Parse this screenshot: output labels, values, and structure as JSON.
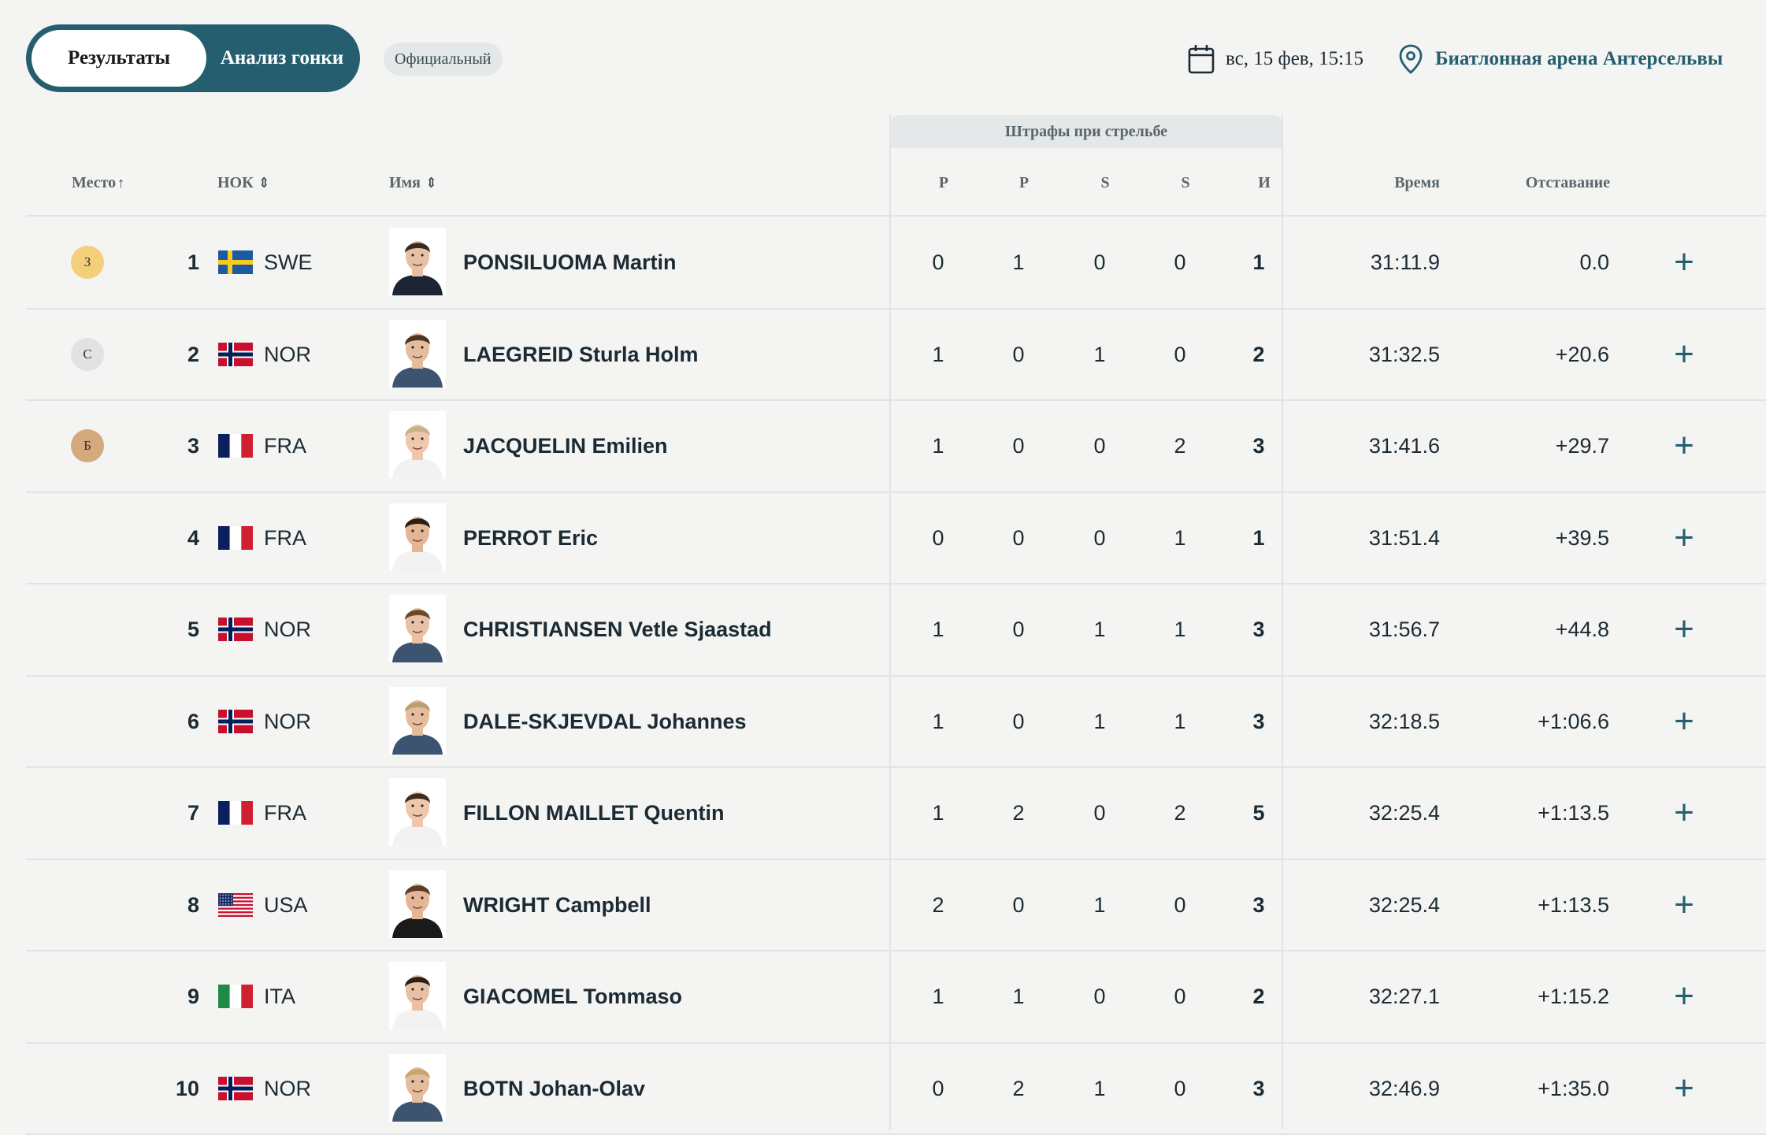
{
  "tabs": {
    "results": "Результаты",
    "analysis": "Анализ гонки"
  },
  "status_badge": "Официальный",
  "date_label": "вс, 15 фев, 15:15",
  "venue": "Биатлонная арена Антерсельвы",
  "table": {
    "shooting_group": "Штрафы при стрельбе",
    "headers": {
      "rank": "Место",
      "noc": "НОК",
      "name": "Имя",
      "p1": "P",
      "p2": "P",
      "s1": "S",
      "s2": "S",
      "total": "И",
      "time": "Время",
      "behind": "Отставание"
    },
    "rows": [
      {
        "medal": "З",
        "medal_type": "gold",
        "rank": "1",
        "flag": "swe",
        "noc": "SWE",
        "name": "PONSILUOMA Martin",
        "p1": "0",
        "p2": "1",
        "s1": "0",
        "s2": "0",
        "total": "1",
        "time": "31:11.9",
        "behind": "0.0"
      },
      {
        "medal": "С",
        "medal_type": "silver",
        "rank": "2",
        "flag": "nor",
        "noc": "NOR",
        "name": "LAEGREID Sturla Holm",
        "p1": "1",
        "p2": "0",
        "s1": "1",
        "s2": "0",
        "total": "2",
        "time": "31:32.5",
        "behind": "+20.6"
      },
      {
        "medal": "Б",
        "medal_type": "bronze",
        "rank": "3",
        "flag": "fra",
        "noc": "FRA",
        "name": "JACQUELIN Emilien",
        "p1": "1",
        "p2": "0",
        "s1": "0",
        "s2": "2",
        "total": "3",
        "time": "31:41.6",
        "behind": "+29.7"
      },
      {
        "medal": "",
        "medal_type": "",
        "rank": "4",
        "flag": "fra",
        "noc": "FRA",
        "name": "PERROT Eric",
        "p1": "0",
        "p2": "0",
        "s1": "0",
        "s2": "1",
        "total": "1",
        "time": "31:51.4",
        "behind": "+39.5"
      },
      {
        "medal": "",
        "medal_type": "",
        "rank": "5",
        "flag": "nor",
        "noc": "NOR",
        "name": "CHRISTIANSEN Vetle Sjaastad",
        "p1": "1",
        "p2": "0",
        "s1": "1",
        "s2": "1",
        "total": "3",
        "time": "31:56.7",
        "behind": "+44.8"
      },
      {
        "medal": "",
        "medal_type": "",
        "rank": "6",
        "flag": "nor",
        "noc": "NOR",
        "name": "DALE-SKJEVDAL Johannes",
        "p1": "1",
        "p2": "0",
        "s1": "1",
        "s2": "1",
        "total": "3",
        "time": "32:18.5",
        "behind": "+1:06.6"
      },
      {
        "medal": "",
        "medal_type": "",
        "rank": "7",
        "flag": "fra",
        "noc": "FRA",
        "name": "FILLON MAILLET Quentin",
        "p1": "1",
        "p2": "2",
        "s1": "0",
        "s2": "2",
        "total": "5",
        "time": "32:25.4",
        "behind": "+1:13.5"
      },
      {
        "medal": "",
        "medal_type": "",
        "rank": "8",
        "flag": "usa",
        "noc": "USA",
        "name": "WRIGHT Campbell",
        "p1": "2",
        "p2": "0",
        "s1": "1",
        "s2": "0",
        "total": "3",
        "time": "32:25.4",
        "behind": "+1:13.5"
      },
      {
        "medal": "",
        "medal_type": "",
        "rank": "9",
        "flag": "ita",
        "noc": "ITA",
        "name": "GIACOMEL Tommaso",
        "p1": "1",
        "p2": "1",
        "s1": "0",
        "s2": "0",
        "total": "2",
        "time": "32:27.1",
        "behind": "+1:15.2"
      },
      {
        "medal": "",
        "medal_type": "",
        "rank": "10",
        "flag": "nor",
        "noc": "NOR",
        "name": "BOTN Johan-Olav",
        "p1": "0",
        "p2": "2",
        "s1": "1",
        "s2": "0",
        "total": "3",
        "time": "32:46.9",
        "behind": "+1:35.0"
      }
    ]
  },
  "colors": {
    "accent": "#255f6f",
    "gold": "#f3cf7a",
    "silver": "#e2e2e2",
    "bronze": "#d4a97e"
  }
}
